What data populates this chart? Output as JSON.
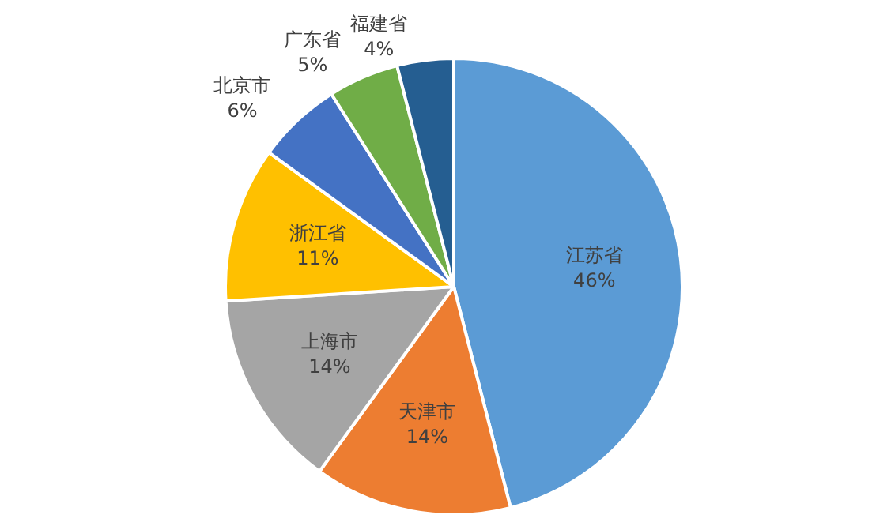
{
  "chart_data": {
    "type": "pie",
    "categories": [
      "江苏省",
      "天津市",
      "上海市",
      "浙江省",
      "北京市",
      "广东省",
      "福建省"
    ],
    "values": [
      46,
      14,
      14,
      11,
      6,
      5,
      4
    ],
    "colors": [
      "#5b9bd5",
      "#ed7d31",
      "#a5a5a5",
      "#ffc000",
      "#4472c4",
      "#70ad47",
      "#255e91"
    ],
    "value_labels": [
      "46%",
      "14%",
      "14%",
      "11%",
      "6%",
      "5%",
      "4%"
    ],
    "legend": false
  }
}
